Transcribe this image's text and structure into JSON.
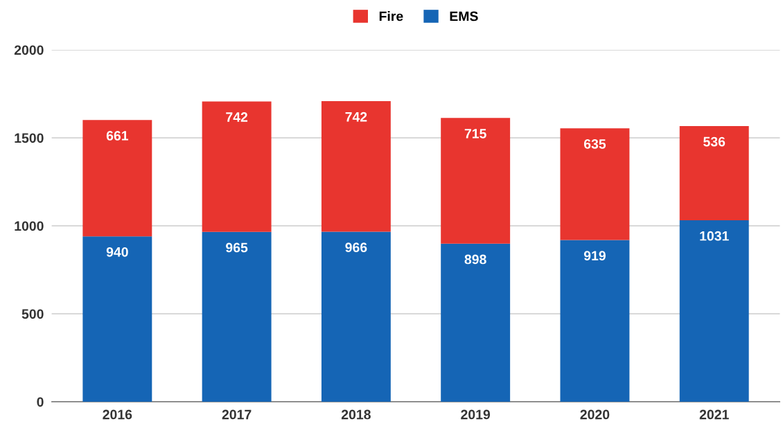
{
  "chart_data": {
    "type": "bar",
    "stacked": true,
    "categories": [
      "2016",
      "2017",
      "2018",
      "2019",
      "2020",
      "2021"
    ],
    "series": [
      {
        "name": "EMS",
        "color": "#1565b5",
        "values": [
          940,
          965,
          966,
          898,
          919,
          1031
        ]
      },
      {
        "name": "Fire",
        "color": "#e8352f",
        "values": [
          661,
          742,
          742,
          715,
          635,
          536
        ]
      }
    ],
    "ylim": [
      0,
      2000
    ],
    "yticks": [
      0,
      500,
      1000,
      1500,
      2000
    ],
    "grid": "y",
    "legend": "top",
    "data_labels": true
  }
}
